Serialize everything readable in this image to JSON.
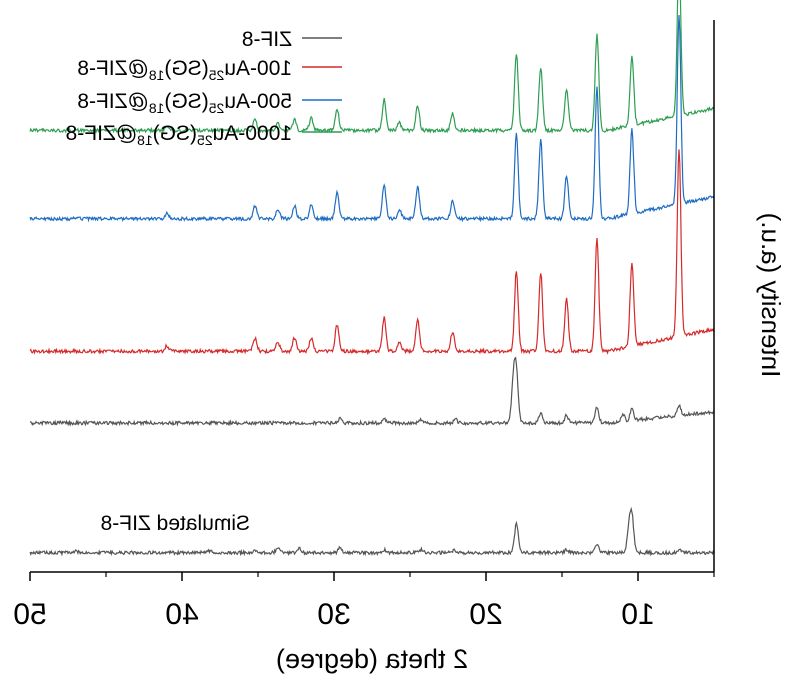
{
  "chart_data": {
    "type": "line",
    "xlabel": "2 theta (degree)",
    "ylabel": "Intensity (a.u.)",
    "xlim": [
      50,
      5
    ],
    "x_reversed": true,
    "mirrored": true,
    "xticks": [
      50,
      40,
      30,
      20,
      10
    ],
    "xtick_labels": [
      "50",
      "40",
      "30",
      "20",
      "10"
    ],
    "grid": false,
    "legend_position": "top-right",
    "series": [
      {
        "name": "ZIF-8",
        "color": "#555555",
        "offset": 0.27,
        "amp": 0.15,
        "slope": 0.02,
        "peaks": [
          [
            7.3,
            0.12
          ],
          [
            10.4,
            0.14
          ],
          [
            11.0,
            0.09
          ],
          [
            12.7,
            0.2
          ],
          [
            14.7,
            0.09
          ],
          [
            16.4,
            0.13
          ],
          [
            18.0,
            0.6
          ],
          [
            18.2,
            0.5
          ],
          [
            22.0,
            0.04
          ],
          [
            24.3,
            0.04
          ],
          [
            26.7,
            0.05
          ],
          [
            29.6,
            0.05
          ]
        ]
      },
      {
        "name": "100-Au25(SG)18@ZIF-8",
        "color": "#d42a2a",
        "offset": 0.4,
        "amp": 0.34,
        "slope": 0.04,
        "peaks": [
          [
            7.3,
            1.0
          ],
          [
            10.4,
            0.45
          ],
          [
            12.7,
            0.6
          ],
          [
            14.7,
            0.28
          ],
          [
            16.4,
            0.42
          ],
          [
            18.0,
            0.43
          ],
          [
            22.2,
            0.1
          ],
          [
            24.5,
            0.17
          ],
          [
            25.7,
            0.05
          ],
          [
            26.7,
            0.18
          ],
          [
            29.8,
            0.14
          ],
          [
            31.5,
            0.07
          ],
          [
            32.6,
            0.07
          ],
          [
            33.7,
            0.05
          ],
          [
            35.2,
            0.07
          ],
          [
            41.0,
            0.03
          ]
        ]
      },
      {
        "name": "500-Au25(SG)18@ZIF-8",
        "color": "#1f6dc2",
        "offset": 0.64,
        "amp": 0.34,
        "slope": 0.04,
        "peaks": [
          [
            7.3,
            1.0
          ],
          [
            10.4,
            0.45
          ],
          [
            12.7,
            0.7
          ],
          [
            14.7,
            0.23
          ],
          [
            16.4,
            0.42
          ],
          [
            18.0,
            0.45
          ],
          [
            22.2,
            0.1
          ],
          [
            24.5,
            0.17
          ],
          [
            25.7,
            0.05
          ],
          [
            26.7,
            0.18
          ],
          [
            29.8,
            0.14
          ],
          [
            31.5,
            0.07
          ],
          [
            32.6,
            0.07
          ],
          [
            33.7,
            0.05
          ],
          [
            35.2,
            0.07
          ],
          [
            41.0,
            0.03
          ]
        ]
      },
      {
        "name": "1000-Au25(SG)18@ZIF-8",
        "color": "#2e9e52",
        "offset": 0.8,
        "amp": 0.28,
        "slope": 0.04,
        "peaks": [
          [
            7.3,
            1.0
          ],
          [
            10.4,
            0.45
          ],
          [
            12.7,
            0.62
          ],
          [
            14.7,
            0.27
          ],
          [
            16.4,
            0.41
          ],
          [
            18.0,
            0.5
          ],
          [
            22.2,
            0.11
          ],
          [
            24.5,
            0.16
          ],
          [
            25.7,
            0.05
          ],
          [
            26.7,
            0.2
          ],
          [
            29.8,
            0.14
          ],
          [
            31.5,
            0.08
          ],
          [
            32.6,
            0.07
          ],
          [
            33.7,
            0.05
          ],
          [
            35.2,
            0.07
          ],
          [
            41.0,
            0.03
          ]
        ]
      },
      {
        "name": "Simulated ZIF-8",
        "color": "#555555",
        "offset": 0.035,
        "amp": 0.12,
        "slope": 0.0,
        "peaks": [
          [
            7.3,
            0.05
          ],
          [
            10.4,
            0.55
          ],
          [
            10.6,
            0.35
          ],
          [
            12.7,
            0.13
          ],
          [
            14.7,
            0.05
          ],
          [
            18.0,
            0.45
          ],
          [
            22.1,
            0.04
          ],
          [
            24.3,
            0.05
          ],
          [
            26.7,
            0.04
          ],
          [
            29.6,
            0.08
          ],
          [
            32.3,
            0.07
          ],
          [
            33.7,
            0.08
          ],
          [
            35.2,
            0.03
          ],
          [
            38.2,
            0.03
          ],
          [
            47.0,
            0.03
          ]
        ]
      }
    ],
    "annotations": [
      {
        "text": "Simulated ZIF-8"
      }
    ]
  },
  "legend": [
    {
      "prefix": "ZIF-8",
      "sub": "",
      "mid": "",
      "sub2": "",
      "suffix": ""
    },
    {
      "prefix": "100-Au",
      "sub": "25",
      "mid": "(SG)",
      "sub2": "18",
      "suffix": "@ZIF-8"
    },
    {
      "prefix": "500-Au",
      "sub": "25",
      "mid": "(SG)",
      "sub2": "18",
      "suffix": "@ZIF-8"
    },
    {
      "prefix": "1000-Au",
      "sub": "25",
      "mid": "(SG)",
      "sub2": "18",
      "suffix": "@ZIF-8"
    }
  ]
}
